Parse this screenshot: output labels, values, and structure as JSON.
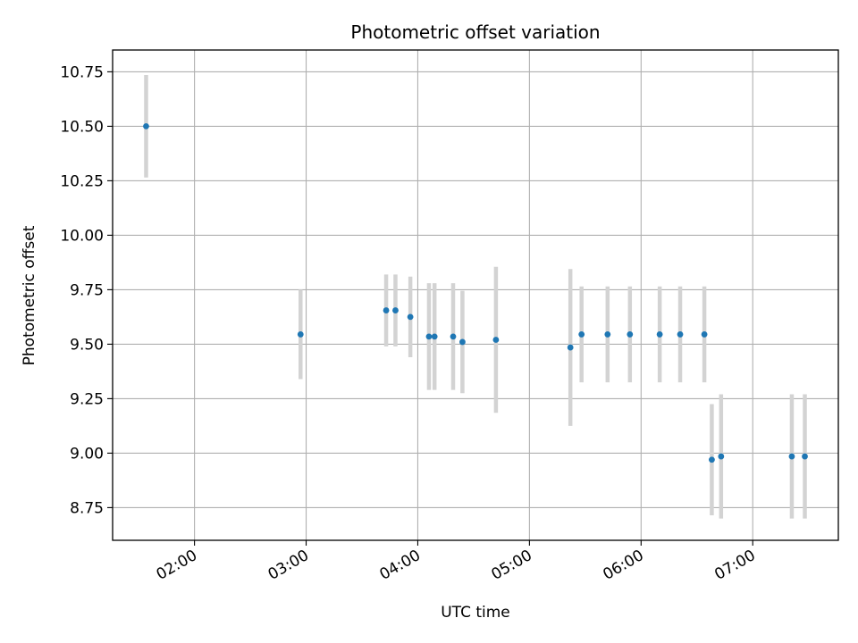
{
  "chart_data": {
    "type": "scatter",
    "title": "Photometric offset variation",
    "xlabel": "UTC time",
    "ylabel": "Photometric offset",
    "xlim": [
      "01:16",
      "07:46"
    ],
    "ylim": [
      8.6,
      10.85
    ],
    "x_ticks": [
      "02:00",
      "03:00",
      "04:00",
      "05:00",
      "06:00",
      "07:00"
    ],
    "y_ticks": [
      8.75,
      9.0,
      9.25,
      9.5,
      9.75,
      10.0,
      10.25,
      10.5,
      10.75
    ],
    "grid": true,
    "colors": {
      "point": "#1f77b4",
      "error_bar": "#d3d3d3",
      "grid": "#b0b0b0"
    },
    "points": [
      {
        "x": "01:34",
        "y": 10.5,
        "err": 0.235
      },
      {
        "x": "02:57",
        "y": 9.545,
        "err": 0.205
      },
      {
        "x": "03:43",
        "y": 9.655,
        "err": 0.165
      },
      {
        "x": "03:48",
        "y": 9.655,
        "err": 0.165
      },
      {
        "x": "03:56",
        "y": 9.625,
        "err": 0.185
      },
      {
        "x": "04:06",
        "y": 9.535,
        "err": 0.245
      },
      {
        "x": "04:09",
        "y": 9.535,
        "err": 0.245
      },
      {
        "x": "04:19",
        "y": 9.535,
        "err": 0.245
      },
      {
        "x": "04:24",
        "y": 9.51,
        "err": 0.235
      },
      {
        "x": "04:42",
        "y": 9.52,
        "err": 0.335
      },
      {
        "x": "05:22",
        "y": 9.485,
        "err": 0.36
      },
      {
        "x": "05:28",
        "y": 9.545,
        "err": 0.22
      },
      {
        "x": "05:42",
        "y": 9.545,
        "err": 0.22
      },
      {
        "x": "05:54",
        "y": 9.545,
        "err": 0.22
      },
      {
        "x": "06:10",
        "y": 9.545,
        "err": 0.22
      },
      {
        "x": "06:21",
        "y": 9.545,
        "err": 0.22
      },
      {
        "x": "06:34",
        "y": 9.545,
        "err": 0.22
      },
      {
        "x": "06:38",
        "y": 8.97,
        "err": 0.255
      },
      {
        "x": "06:43",
        "y": 8.985,
        "err": 0.285
      },
      {
        "x": "07:21",
        "y": 8.985,
        "err": 0.285
      },
      {
        "x": "07:28",
        "y": 8.985,
        "err": 0.285
      }
    ]
  }
}
